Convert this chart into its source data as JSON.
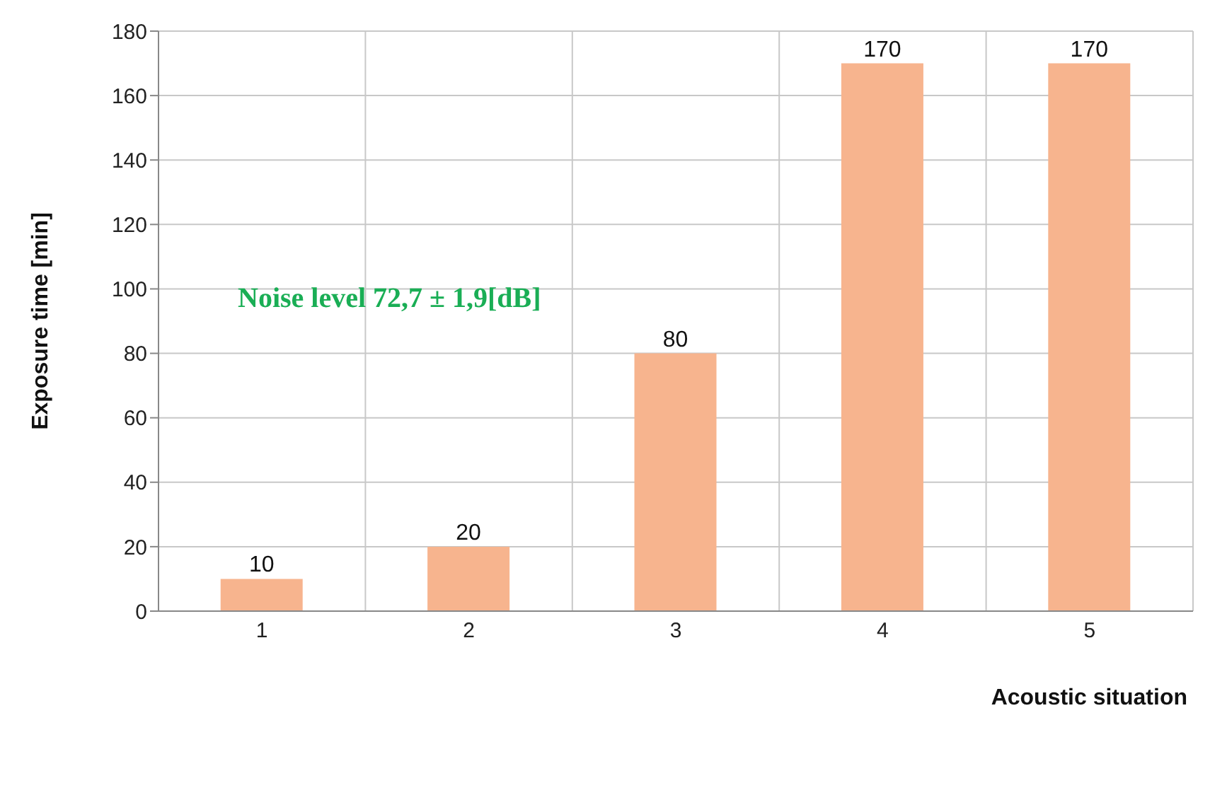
{
  "chart_data": {
    "type": "bar",
    "xlabel": "Acoustic situation",
    "ylabel": "Exposure time [min]",
    "categories": [
      "1",
      "2",
      "3",
      "4",
      "5"
    ],
    "values": [
      10,
      20,
      80,
      170,
      170
    ],
    "color": "#f7b48e",
    "ylim": [
      0,
      180
    ],
    "yticks": [
      0,
      20,
      40,
      60,
      80,
      100,
      120,
      140,
      160,
      180
    ],
    "grid": true,
    "data_labels": true,
    "annotations": [
      "Noise level 72,7 ± 1,9[dB]"
    ]
  }
}
